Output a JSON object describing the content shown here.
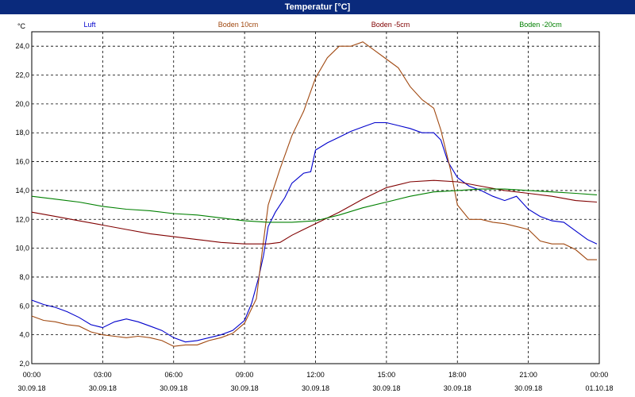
{
  "window": {
    "title": "Temperatur [°C]"
  },
  "chart_data": {
    "type": "line",
    "title": "Temperatur [°C]",
    "ylabel": "°C",
    "ylim": [
      2.0,
      25.0
    ],
    "y_ticks": [
      "2,0",
      "4,0",
      "6,0",
      "8,0",
      "10,0",
      "12,0",
      "14,0",
      "16,0",
      "18,0",
      "20,0",
      "22,0",
      "24,0"
    ],
    "xlim": [
      0,
      24
    ],
    "x_ticks": [
      {
        "time": "00:00",
        "date": "30.09.18"
      },
      {
        "time": "03:00",
        "date": "30.09.18"
      },
      {
        "time": "06:00",
        "date": "30.09.18"
      },
      {
        "time": "09:00",
        "date": "30.09.18"
      },
      {
        "time": "12:00",
        "date": "30.09.18"
      },
      {
        "time": "15:00",
        "date": "30.09.18"
      },
      {
        "time": "18:00",
        "date": "30.09.18"
      },
      {
        "time": "21:00",
        "date": "30.09.18"
      },
      {
        "time": "00:00",
        "date": "01.10.18"
      }
    ],
    "grid": true,
    "legend_position": "top",
    "series": [
      {
        "name": "Luft",
        "color": "#0000cc",
        "points": [
          [
            0,
            6.4
          ],
          [
            0.5,
            6.1
          ],
          [
            1,
            5.9
          ],
          [
            1.5,
            5.6
          ],
          [
            2,
            5.2
          ],
          [
            2.5,
            4.7
          ],
          [
            3,
            4.5
          ],
          [
            3.5,
            4.9
          ],
          [
            4,
            5.1
          ],
          [
            4.5,
            4.9
          ],
          [
            5,
            4.6
          ],
          [
            5.5,
            4.3
          ],
          [
            6,
            3.8
          ],
          [
            6.5,
            3.5
          ],
          [
            7,
            3.6
          ],
          [
            7.5,
            3.8
          ],
          [
            8,
            4.0
          ],
          [
            8.5,
            4.3
          ],
          [
            9,
            5.0
          ],
          [
            9.3,
            6.2
          ],
          [
            9.6,
            8.0
          ],
          [
            9.8,
            9.5
          ],
          [
            10,
            11.5
          ],
          [
            10.3,
            12.5
          ],
          [
            10.7,
            13.5
          ],
          [
            11,
            14.5
          ],
          [
            11.5,
            15.2
          ],
          [
            11.8,
            15.3
          ],
          [
            12,
            16.8
          ],
          [
            12.5,
            17.3
          ],
          [
            13,
            17.7
          ],
          [
            13.5,
            18.1
          ],
          [
            14,
            18.4
          ],
          [
            14.5,
            18.7
          ],
          [
            15,
            18.7
          ],
          [
            15.5,
            18.5
          ],
          [
            16,
            18.3
          ],
          [
            16.5,
            18.0
          ],
          [
            17,
            18.0
          ],
          [
            17.3,
            17.5
          ],
          [
            17.6,
            16.0
          ],
          [
            18,
            14.9
          ],
          [
            18.5,
            14.3
          ],
          [
            19,
            14.0
          ],
          [
            19.5,
            13.6
          ],
          [
            20,
            13.3
          ],
          [
            20.5,
            13.6
          ],
          [
            21,
            12.7
          ],
          [
            21.5,
            12.2
          ],
          [
            22,
            11.9
          ],
          [
            22.5,
            11.8
          ],
          [
            23,
            11.2
          ],
          [
            23.5,
            10.6
          ],
          [
            23.9,
            10.3
          ]
        ]
      },
      {
        "name": "Boden 10cm",
        "color": "#a04810",
        "points": [
          [
            0,
            5.3
          ],
          [
            0.5,
            5.0
          ],
          [
            1,
            4.9
          ],
          [
            1.5,
            4.7
          ],
          [
            2,
            4.6
          ],
          [
            2.5,
            4.2
          ],
          [
            3,
            4.0
          ],
          [
            3.5,
            3.9
          ],
          [
            4,
            3.8
          ],
          [
            4.5,
            3.9
          ],
          [
            5,
            3.8
          ],
          [
            5.5,
            3.6
          ],
          [
            6,
            3.2
          ],
          [
            6.5,
            3.3
          ],
          [
            7,
            3.3
          ],
          [
            7.5,
            3.6
          ],
          [
            8,
            3.8
          ],
          [
            8.5,
            4.1
          ],
          [
            9,
            4.8
          ],
          [
            9.5,
            6.5
          ],
          [
            9.8,
            10.5
          ],
          [
            10,
            13.0
          ],
          [
            10.5,
            15.5
          ],
          [
            11,
            17.8
          ],
          [
            11.5,
            19.5
          ],
          [
            12,
            21.8
          ],
          [
            12.5,
            23.2
          ],
          [
            13,
            24.0
          ],
          [
            13.5,
            24.0
          ],
          [
            14,
            24.3
          ],
          [
            14.5,
            23.7
          ],
          [
            15,
            23.1
          ],
          [
            15.5,
            22.5
          ],
          [
            16,
            21.2
          ],
          [
            16.5,
            20.3
          ],
          [
            17,
            19.7
          ],
          [
            17.3,
            18.2
          ],
          [
            17.7,
            15.5
          ],
          [
            18,
            13.0
          ],
          [
            18.5,
            12.0
          ],
          [
            19,
            12.0
          ],
          [
            19.5,
            11.8
          ],
          [
            20,
            11.7
          ],
          [
            20.5,
            11.5
          ],
          [
            21,
            11.3
          ],
          [
            21.5,
            10.5
          ],
          [
            22,
            10.3
          ],
          [
            22.5,
            10.3
          ],
          [
            23,
            9.9
          ],
          [
            23.5,
            9.2
          ],
          [
            23.9,
            9.2
          ]
        ]
      },
      {
        "name": "Boden -5cm",
        "color": "#800000",
        "points": [
          [
            0,
            12.5
          ],
          [
            1,
            12.2
          ],
          [
            2,
            11.9
          ],
          [
            3,
            11.6
          ],
          [
            4,
            11.3
          ],
          [
            5,
            11.0
          ],
          [
            6,
            10.8
          ],
          [
            7,
            10.6
          ],
          [
            8,
            10.4
          ],
          [
            9,
            10.3
          ],
          [
            10,
            10.3
          ],
          [
            10.5,
            10.4
          ],
          [
            11,
            10.9
          ],
          [
            12,
            11.7
          ],
          [
            13,
            12.5
          ],
          [
            14,
            13.4
          ],
          [
            15,
            14.2
          ],
          [
            16,
            14.6
          ],
          [
            17,
            14.7
          ],
          [
            18,
            14.6
          ],
          [
            19,
            14.3
          ],
          [
            20,
            14.0
          ],
          [
            21,
            13.8
          ],
          [
            22,
            13.6
          ],
          [
            23,
            13.3
          ],
          [
            23.9,
            13.2
          ]
        ]
      },
      {
        "name": "Boden -20cm",
        "color": "#008000",
        "points": [
          [
            0,
            13.6
          ],
          [
            1,
            13.4
          ],
          [
            2,
            13.2
          ],
          [
            3,
            12.9
          ],
          [
            4,
            12.7
          ],
          [
            5,
            12.6
          ],
          [
            6,
            12.4
          ],
          [
            7,
            12.3
          ],
          [
            8,
            12.1
          ],
          [
            9,
            11.9
          ],
          [
            10,
            11.8
          ],
          [
            11,
            11.8
          ],
          [
            12,
            11.9
          ],
          [
            13,
            12.3
          ],
          [
            14,
            12.8
          ],
          [
            15,
            13.2
          ],
          [
            16,
            13.6
          ],
          [
            17,
            13.9
          ],
          [
            18,
            14.0
          ],
          [
            19,
            14.1
          ],
          [
            20,
            14.1
          ],
          [
            21,
            14.0
          ],
          [
            22,
            13.9
          ],
          [
            23,
            13.8
          ],
          [
            23.9,
            13.7
          ]
        ]
      }
    ]
  }
}
